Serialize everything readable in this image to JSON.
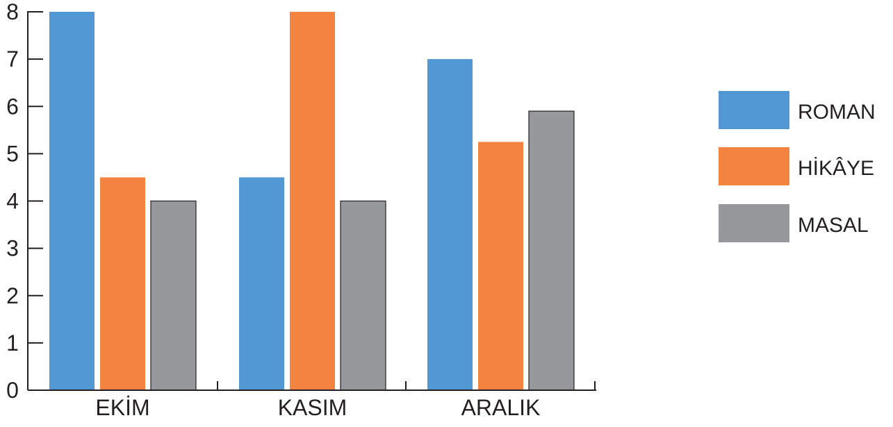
{
  "chart_data": {
    "type": "bar",
    "categories": [
      "EKİM",
      "KASIM",
      "ARALIK"
    ],
    "series": [
      {
        "name": "ROMAN",
        "values": [
          8,
          4.5,
          7
        ],
        "color": "#5097d3"
      },
      {
        "name": "HİKÂYE",
        "values": [
          4.5,
          8,
          5.25
        ],
        "color": "#f28440"
      },
      {
        "name": "MASAL",
        "values": [
          4,
          4,
          5.9
        ],
        "color": "#97989b"
      }
    ],
    "title": "",
    "xlabel": "",
    "ylabel": "",
    "ylim": [
      0,
      8
    ],
    "yticks": [
      0,
      1,
      2,
      3,
      4,
      5,
      6,
      7,
      8
    ],
    "grid": false,
    "legend_position": "right"
  }
}
